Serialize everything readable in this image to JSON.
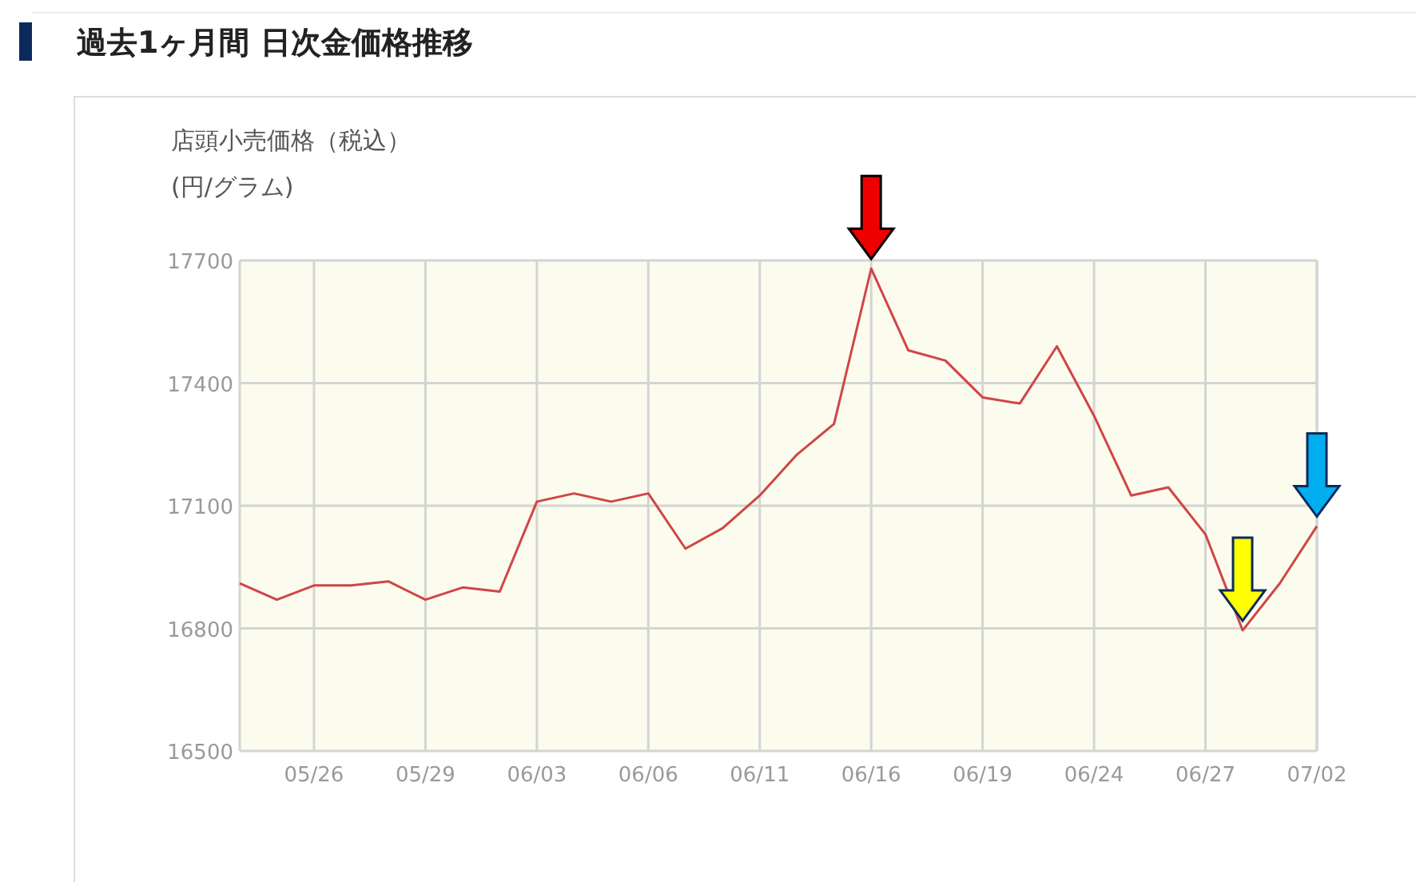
{
  "chart_data": {
    "type": "line",
    "title": "過去1ヶ月間 日次金価格推移",
    "subtitle": "店頭小売価格（税込）",
    "ylabel": "(円/グラム)",
    "categories": [
      null,
      null,
      "05/26",
      null,
      null,
      "05/29",
      null,
      null,
      "06/03",
      null,
      null,
      "06/06",
      null,
      null,
      "06/11",
      null,
      null,
      "06/16",
      null,
      null,
      "06/19",
      null,
      null,
      "06/24",
      null,
      null,
      "06/27",
      null,
      null,
      "07/02"
    ],
    "values": [
      16910,
      16870,
      16905,
      16905,
      16915,
      16870,
      16900,
      16890,
      17110,
      17130,
      17110,
      17130,
      16995,
      17045,
      17125,
      17225,
      17300,
      17680,
      17480,
      17455,
      17365,
      17350,
      17490,
      17320,
      17125,
      17145,
      17030,
      16795,
      16910,
      17050
    ],
    "color": "#d04545",
    "ylim": [
      16500,
      17700
    ],
    "yticks": [
      16500,
      16800,
      17100,
      17400,
      17700
    ],
    "grid": true
  }
}
